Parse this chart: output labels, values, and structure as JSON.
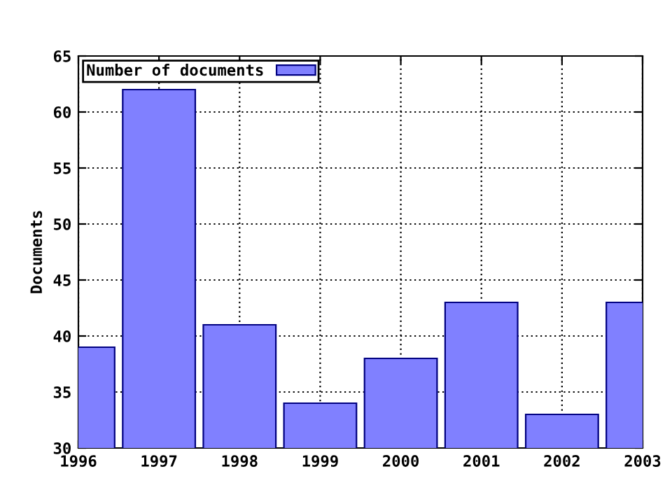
{
  "chart_data": {
    "type": "bar",
    "ylabel": "Documents",
    "x": [
      1996,
      1997,
      1998,
      1999,
      2000,
      2001,
      2002,
      2003
    ],
    "series": [
      {
        "name": "Number of documents",
        "color": "#8080ff",
        "values": [
          39,
          62,
          41,
          34,
          38,
          43,
          33,
          43
        ]
      }
    ],
    "xlim": [
      1996,
      2003
    ],
    "xticks": [
      1996,
      1997,
      1998,
      1999,
      2000,
      2001,
      2002,
      2003
    ],
    "ylim": [
      30,
      65
    ],
    "yticks": [
      30,
      35,
      40,
      45,
      50,
      55,
      60,
      65
    ],
    "grid": true,
    "legend": "top left"
  }
}
